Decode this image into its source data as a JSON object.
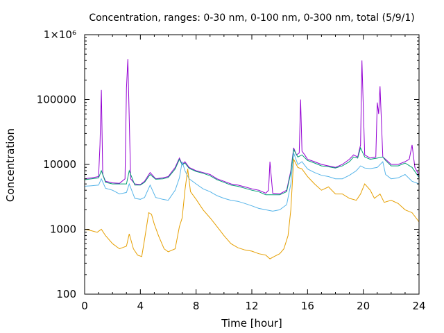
{
  "chart_data": {
    "type": "line",
    "title": "Concentration, ranges: 0-30 nm, 0-100 nm, 0-300 nm, total (5/9/1)",
    "xlabel": "Time [hour]",
    "ylabel": "Concentration",
    "xlim": [
      0,
      24
    ],
    "ylim": [
      100,
      1000000
    ],
    "yscale": "log",
    "grid": false,
    "x_ticks": [
      0,
      4,
      8,
      12,
      16,
      20,
      24
    ],
    "x_tick_labels": [
      "0",
      "4",
      "8",
      "12",
      "16",
      "20",
      "24"
    ],
    "y_ticks": [
      100,
      1000,
      10000,
      100000,
      1000000
    ],
    "y_tick_labels": [
      "100",
      "1000",
      "10000",
      "100000",
      "1×10⁶"
    ],
    "series": [
      {
        "color": "#9400d3",
        "x": [
          0,
          0.5,
          1.0,
          1.1,
          1.2,
          1.3,
          1.5,
          2.0,
          2.5,
          2.9,
          3.0,
          3.1,
          3.3,
          3.6,
          4.0,
          4.3,
          4.7,
          5.1,
          5.6,
          6.0,
          6.5,
          6.8,
          7.0,
          7.2,
          7.5,
          8.0,
          8.5,
          9.0,
          9.5,
          10.0,
          10.5,
          11.0,
          11.5,
          12.0,
          12.5,
          13.0,
          13.2,
          13.3,
          13.5,
          14.0,
          14.5,
          14.8,
          15.0,
          15.2,
          15.4,
          15.5,
          15.6,
          15.8,
          16.0,
          16.5,
          17.0,
          17.5,
          18.0,
          18.5,
          19.0,
          19.3,
          19.6,
          19.8,
          19.9,
          20.1,
          20.5,
          20.9,
          21.0,
          21.1,
          21.2,
          21.4,
          21.6,
          22.0,
          22.5,
          23.0,
          23.3,
          23.5,
          23.7,
          23.9,
          24.0
        ],
        "y": [
          6000,
          6200,
          6500,
          20000,
          140000,
          7000,
          5500,
          5200,
          5100,
          6000,
          150000,
          420000,
          6000,
          5000,
          4900,
          5500,
          7500,
          6000,
          6200,
          6500,
          9000,
          12500,
          10000,
          11000,
          9000,
          8000,
          7500,
          7000,
          6000,
          5500,
          5000,
          4800,
          4500,
          4200,
          4000,
          3600,
          4000,
          11000,
          3600,
          3500,
          4000,
          8000,
          18000,
          14000,
          15000,
          100000,
          16000,
          14000,
          12000,
          11000,
          10000,
          9500,
          9000,
          10000,
          12000,
          14000,
          13000,
          20000,
          400000,
          14000,
          12500,
          13000,
          90000,
          60000,
          160000,
          13000,
          12000,
          10000,
          10000,
          11000,
          12000,
          20000,
          9000,
          7500,
          6500
        ]
      },
      {
        "color": "#009e73",
        "x": [
          0,
          0.5,
          1.0,
          1.2,
          1.5,
          2.0,
          3.0,
          3.2,
          3.6,
          4.0,
          4.3,
          4.7,
          5.1,
          5.6,
          6.0,
          6.5,
          6.8,
          7.0,
          7.2,
          7.5,
          8.0,
          8.5,
          9.0,
          9.5,
          10.0,
          10.5,
          11.0,
          11.5,
          12.0,
          12.5,
          13.0,
          13.5,
          14.0,
          14.5,
          14.8,
          15.0,
          15.3,
          15.6,
          16.0,
          16.5,
          17.0,
          17.5,
          18.0,
          18.5,
          19.0,
          19.3,
          19.6,
          19.8,
          20.1,
          20.5,
          21.0,
          21.4,
          21.6,
          22.0,
          22.5,
          23.0,
          23.5,
          24.0
        ],
        "y": [
          5800,
          6000,
          6200,
          8000,
          5300,
          5000,
          5000,
          8000,
          4800,
          4800,
          5300,
          7000,
          5900,
          6000,
          6300,
          8500,
          12000,
          9800,
          10500,
          8700,
          7800,
          7300,
          6700,
          5800,
          5300,
          4800,
          4600,
          4300,
          4000,
          3800,
          3400,
          3400,
          3400,
          3800,
          7500,
          17000,
          13000,
          14000,
          11500,
          10500,
          9500,
          9200,
          8800,
          9500,
          11000,
          13000,
          12500,
          18000,
          13000,
          12000,
          12500,
          13000,
          11500,
          9500,
          9500,
          10500,
          9000,
          6300
        ]
      },
      {
        "color": "#56b4e9",
        "x": [
          0,
          0.5,
          1.0,
          1.2,
          1.5,
          2.0,
          2.5,
          3.0,
          3.2,
          3.6,
          4.0,
          4.3,
          4.7,
          5.1,
          5.6,
          6.0,
          6.5,
          6.8,
          7.0,
          7.2,
          7.5,
          8.0,
          8.5,
          9.0,
          9.5,
          10.0,
          10.5,
          11.0,
          11.5,
          12.0,
          12.5,
          13.0,
          13.5,
          14.0,
          14.5,
          14.8,
          15.0,
          15.3,
          15.6,
          16.0,
          16.5,
          17.0,
          17.5,
          18.0,
          18.5,
          19.0,
          19.5,
          19.8,
          20.1,
          20.5,
          21.0,
          21.4,
          21.6,
          22.0,
          22.5,
          23.0,
          23.5,
          24.0
        ],
        "y": [
          4600,
          4700,
          4800,
          6000,
          4300,
          4000,
          3500,
          3700,
          5000,
          3000,
          2900,
          3100,
          4800,
          3100,
          2900,
          2800,
          4000,
          6200,
          11000,
          8000,
          6000,
          5000,
          4200,
          3800,
          3300,
          3000,
          2800,
          2700,
          2500,
          2300,
          2100,
          2000,
          1900,
          2000,
          2400,
          5000,
          15000,
          10000,
          11000,
          8500,
          7500,
          6800,
          6500,
          6000,
          6000,
          6800,
          8000,
          9500,
          8800,
          8600,
          9000,
          11000,
          7000,
          6000,
          6200,
          7000,
          5500,
          5000
        ]
      },
      {
        "color": "#e69f00",
        "x": [
          0,
          0.5,
          0.9,
          1.2,
          1.5,
          2.0,
          2.5,
          3.0,
          3.2,
          3.5,
          3.8,
          4.1,
          4.3,
          4.6,
          4.8,
          5.0,
          5.3,
          5.7,
          6.0,
          6.5,
          6.8,
          7.0,
          7.2,
          7.4,
          7.6,
          8.0,
          8.5,
          9.0,
          9.5,
          10.0,
          10.5,
          11.0,
          11.5,
          12.0,
          12.5,
          13.0,
          13.3,
          13.6,
          14.0,
          14.3,
          14.6,
          14.8,
          15.0,
          15.3,
          15.6,
          16.0,
          16.5,
          17.0,
          17.5,
          18.0,
          18.5,
          19.0,
          19.5,
          19.8,
          20.1,
          20.5,
          20.8,
          21.2,
          21.5,
          22.0,
          22.5,
          23.0,
          23.5,
          24.0
        ],
        "y": [
          1000,
          950,
          900,
          1000,
          800,
          600,
          500,
          550,
          850,
          500,
          400,
          380,
          700,
          1800,
          1700,
          1200,
          800,
          500,
          450,
          500,
          1100,
          1500,
          4000,
          8500,
          3800,
          2900,
          2000,
          1500,
          1100,
          800,
          600,
          520,
          480,
          460,
          420,
          400,
          350,
          380,
          420,
          500,
          800,
          2000,
          12000,
          9000,
          8500,
          6500,
          5000,
          4000,
          4500,
          3500,
          3500,
          3000,
          2800,
          3500,
          5000,
          4000,
          3000,
          3500,
          2600,
          2800,
          2500,
          2000,
          1800,
          1300
        ]
      }
    ]
  }
}
